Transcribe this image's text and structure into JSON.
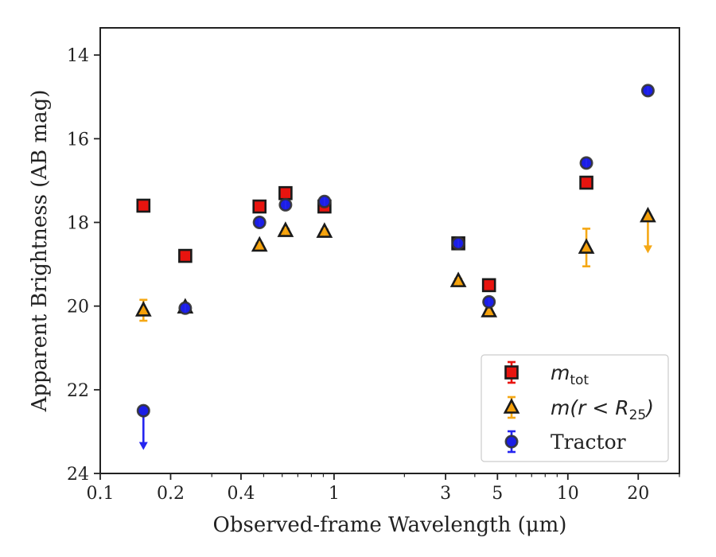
{
  "chart_data": {
    "type": "scatter",
    "xlabel": "Observed-frame Wavelength (μm)",
    "ylabel": "Apparent Brightness (AB mag)",
    "xscale": "log",
    "xlim": [
      0.1,
      30
    ],
    "ylim": [
      24,
      13.35
    ],
    "y_inverted": true,
    "grid": false,
    "legend_position": "lower right",
    "x_ticks": [
      {
        "value": 0.1,
        "label": "0.1"
      },
      {
        "value": 0.2,
        "label": "0.2"
      },
      {
        "value": 0.4,
        "label": "0.4"
      },
      {
        "value": 1,
        "label": "1"
      },
      {
        "value": 3,
        "label": "3"
      },
      {
        "value": 5,
        "label": "5"
      },
      {
        "value": 10,
        "label": "10"
      },
      {
        "value": 20,
        "label": "20"
      }
    ],
    "y_ticks": [
      {
        "value": 14,
        "label": "14"
      },
      {
        "value": 16,
        "label": "16"
      },
      {
        "value": 18,
        "label": "18"
      },
      {
        "value": 20,
        "label": "20"
      },
      {
        "value": 22,
        "label": "22"
      },
      {
        "value": 24,
        "label": "24"
      }
    ],
    "series": [
      {
        "name": "m_tot",
        "legend_label": {
          "italic": "m",
          "sub": "tot",
          "suffix": ""
        },
        "marker": "square",
        "color": "#e8140f",
        "errcolor": "#e8140f",
        "points": [
          {
            "x": 0.153,
            "y": 17.6,
            "err": 0.07
          },
          {
            "x": 0.231,
            "y": 18.8,
            "err": 0.07
          },
          {
            "x": 0.48,
            "y": 17.62,
            "err": 0.07
          },
          {
            "x": 0.62,
            "y": 17.3,
            "err": 0.07
          },
          {
            "x": 0.91,
            "y": 17.62,
            "err": 0.12
          },
          {
            "x": 3.4,
            "y": 18.5,
            "err": 0.07
          },
          {
            "x": 4.6,
            "y": 19.5,
            "err": 0.07
          },
          {
            "x": 12.0,
            "y": 17.05,
            "err": 0.07
          }
        ]
      },
      {
        "name": "m(r<R25)",
        "legend_label": {
          "italic": "m(r < R",
          "sub": "25",
          "suffix": ")"
        },
        "marker": "triangle",
        "color": "#f5a00a",
        "errcolor": "#f5a815",
        "points": [
          {
            "x": 0.153,
            "y": 20.1,
            "err": 0.25
          },
          {
            "x": 0.231,
            "y": 20.03,
            "err": 0.05
          },
          {
            "x": 0.48,
            "y": 18.55,
            "err": 0.05
          },
          {
            "x": 0.62,
            "y": 18.2,
            "err": 0.05
          },
          {
            "x": 0.91,
            "y": 18.22,
            "err": 0.05
          },
          {
            "x": 3.4,
            "y": 19.4,
            "err": 0.05
          },
          {
            "x": 4.6,
            "y": 20.12,
            "err": 0.05
          },
          {
            "x": 12.0,
            "y": 18.6,
            "err": 0.45
          },
          {
            "x": 22.0,
            "y": 17.85,
            "err": 0,
            "upper_limit": true,
            "arrow_to": 18.7
          }
        ]
      },
      {
        "name": "Tractor",
        "legend_label": {
          "italic": "",
          "sub": "",
          "suffix": "Tractor"
        },
        "marker": "circle",
        "color": "#1b1ee6",
        "errcolor": "#2525f0",
        "points": [
          {
            "x": 0.153,
            "y": 22.5,
            "err": 0,
            "upper_limit": true,
            "arrow_to": 23.4
          },
          {
            "x": 0.231,
            "y": 20.05,
            "err": 0.05
          },
          {
            "x": 0.48,
            "y": 18.0,
            "err": 0.05
          },
          {
            "x": 0.62,
            "y": 17.58,
            "err": 0.05
          },
          {
            "x": 0.91,
            "y": 17.5,
            "err": 0.05
          },
          {
            "x": 3.4,
            "y": 18.5,
            "err": 0.05
          },
          {
            "x": 4.6,
            "y": 19.9,
            "err": 0.05
          },
          {
            "x": 12.0,
            "y": 16.58,
            "err": 0.05
          },
          {
            "x": 22.0,
            "y": 14.85,
            "err": 0.05
          }
        ]
      }
    ]
  }
}
